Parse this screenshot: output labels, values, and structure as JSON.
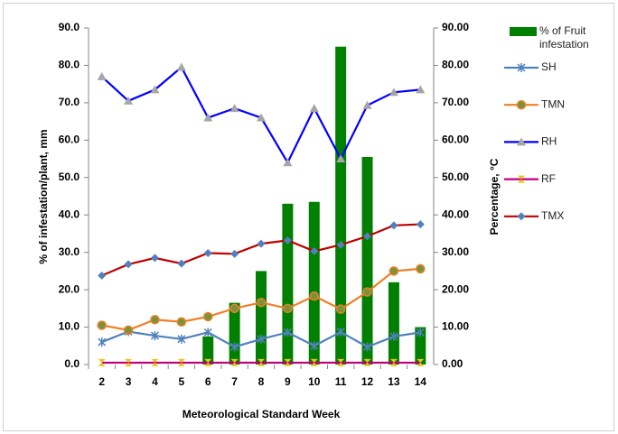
{
  "chart_data": {
    "type": "combo",
    "x_label": "Meteorological Standard Week",
    "y_label": "% of infestation/plant, mm",
    "y2_label": "Percentage, °C",
    "categories": [
      "2",
      "3",
      "4",
      "5",
      "6",
      "7",
      "8",
      "9",
      "10",
      "11",
      "12",
      "13",
      "14"
    ],
    "ylim": [
      0,
      90
    ],
    "yticks": [
      {
        "value": 0,
        "label": "0.0"
      },
      {
        "value": 10,
        "label": "10.0"
      },
      {
        "value": 20,
        "label": "20.0"
      },
      {
        "value": 30,
        "label": "30.0"
      },
      {
        "value": 40,
        "label": "40.0"
      },
      {
        "value": 50,
        "label": "50.0"
      },
      {
        "value": 60,
        "label": "60.0"
      },
      {
        "value": 70,
        "label": "70.0"
      },
      {
        "value": 80,
        "label": "80.0"
      },
      {
        "value": 90,
        "label": "90.0"
      }
    ],
    "y2lim": [
      0,
      90
    ],
    "y2ticks": [
      {
        "value": 0,
        "label": "0.00"
      },
      {
        "value": 10,
        "label": "10.00"
      },
      {
        "value": 20,
        "label": "20.00"
      },
      {
        "value": 30,
        "label": "30.00"
      },
      {
        "value": 40,
        "label": "40.00"
      },
      {
        "value": 50,
        "label": "50.00"
      },
      {
        "value": 60,
        "label": "60.00"
      },
      {
        "value": 70,
        "label": "70.00"
      },
      {
        "value": 80,
        "label": "80.00"
      },
      {
        "value": 90,
        "label": "90.00"
      }
    ],
    "series": [
      {
        "name": "% of Fruit infestation",
        "type": "bar",
        "axis": "y2",
        "color": "#008000",
        "values": [
          0,
          0,
          0,
          0,
          7.5,
          16.5,
          25,
          43,
          43.5,
          85,
          55.5,
          22,
          10
        ]
      },
      {
        "name": "SH",
        "type": "line",
        "color": "#4f81bd",
        "marker": "star",
        "marker_color": "#4f81bd",
        "values": [
          6.0,
          8.8,
          7.7,
          6.8,
          8.6,
          4.7,
          6.8,
          8.6,
          5.0,
          8.7,
          4.7,
          7.5,
          8.6
        ]
      },
      {
        "name": "TMN",
        "type": "line",
        "color": "#f07f24",
        "marker": "circle",
        "marker_color": "#77933c",
        "values": [
          10.5,
          9.2,
          12.0,
          11.4,
          12.8,
          15.0,
          16.6,
          15.0,
          18.3,
          14.8,
          19.4,
          25.0,
          25.6
        ]
      },
      {
        "name": "RH",
        "type": "line",
        "color": "#0000ff",
        "marker": "triangle",
        "marker_color": "#a6a6a6",
        "values": [
          77.0,
          70.5,
          73.5,
          79.5,
          66.0,
          68.5,
          66.0,
          54.0,
          68.5,
          55.0,
          69.3,
          72.8,
          73.5
        ]
      },
      {
        "name": "RF",
        "type": "line",
        "color": "#c0007a",
        "marker": "hourglass",
        "marker_color": "#f2c314",
        "values": [
          0.5,
          0.5,
          0.5,
          0.5,
          0.5,
          0.5,
          0.5,
          0.5,
          0.5,
          0.5,
          0.5,
          0.5,
          0.5
        ]
      },
      {
        "name": "TMX",
        "type": "line",
        "color": "#c00000",
        "marker": "diamond",
        "marker_color": "#4f81bd",
        "values": [
          23.8,
          26.8,
          28.5,
          27.0,
          29.8,
          29.6,
          32.3,
          33.2,
          30.3,
          32.0,
          34.3,
          37.2,
          37.5
        ]
      }
    ]
  }
}
